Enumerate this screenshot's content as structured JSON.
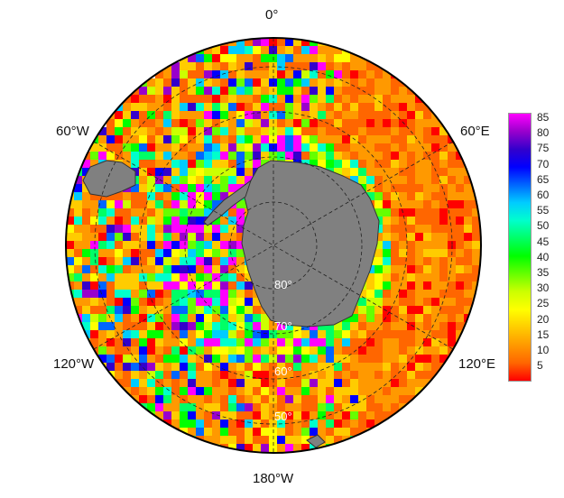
{
  "map": {
    "projection": "south polar stereographic",
    "lon_labels": [
      "0°",
      "60°E",
      "120°E",
      "180°W",
      "120°W",
      "60°W"
    ],
    "lat_labels": [
      "80°",
      "70°",
      "60°",
      "50°"
    ],
    "land_color": "#808080",
    "ocean_pattern": "gridded field, mostly red (low values) in the Indian/Pacific sectors and mixed colors near the ice edge and Atlantic sector"
  },
  "colorbar": {
    "ticks": [
      "85",
      "80",
      "75",
      "70",
      "65",
      "60",
      "55",
      "50",
      "45",
      "40",
      "35",
      "30",
      "25",
      "20",
      "15",
      "10",
      "5"
    ],
    "colors": [
      "#ff00ff",
      "#9900cc",
      "#3300cc",
      "#0000ff",
      "#0066ff",
      "#00ccff",
      "#00ffcc",
      "#00ff66",
      "#00ff00",
      "#66ff00",
      "#ccff00",
      "#ffff00",
      "#ffcc00",
      "#ff9900",
      "#ff6600",
      "#ff0000"
    ],
    "min": 1,
    "max": 88
  }
}
